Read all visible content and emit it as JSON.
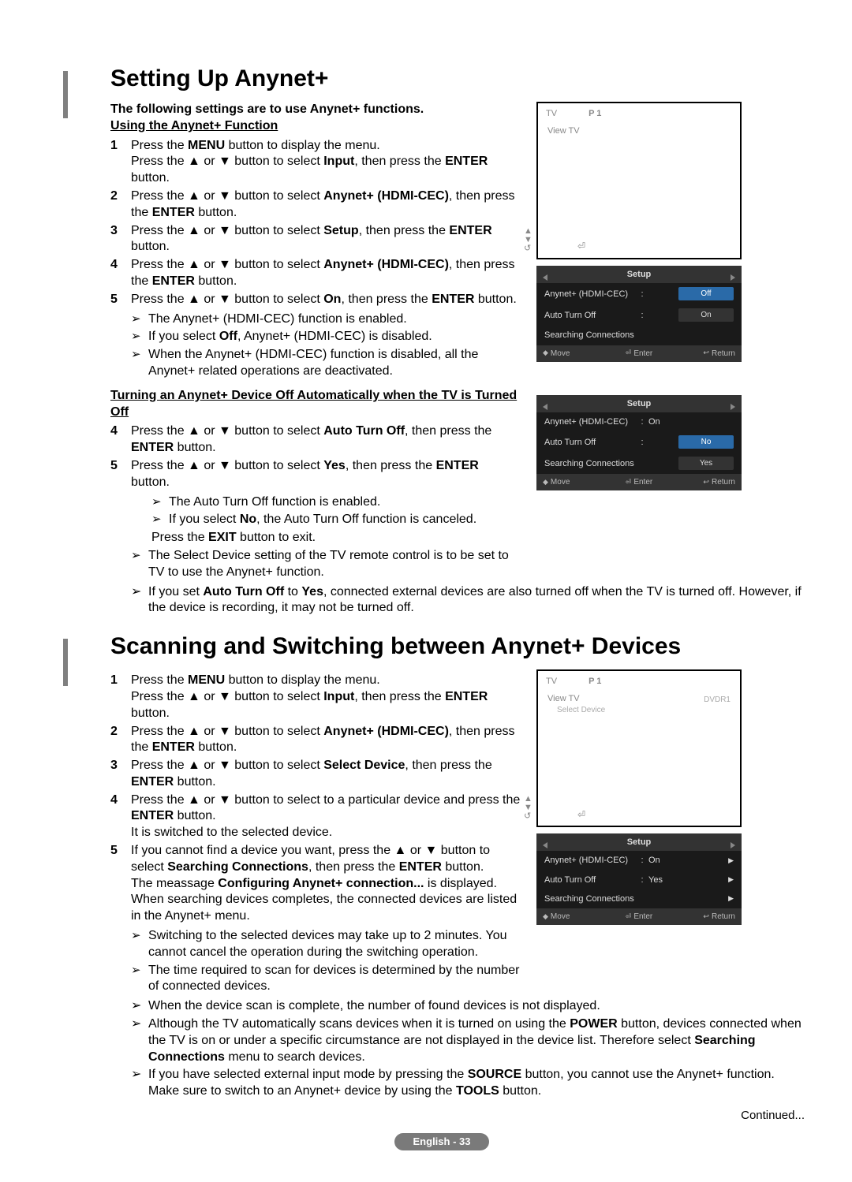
{
  "page": {
    "continued": "Continued...",
    "badge": "English - 33"
  },
  "s1": {
    "title": "Setting Up Anynet+",
    "intro": "The following settings are to use Anynet+ functions.",
    "sub1": "Using the Anynet+ Function",
    "steps1": [
      {
        "n": "1",
        "t": "Press the <b>MENU</b> button to display the menu.<br>Press the ▲ or ▼ button to select <b>Input</b>, then press the <b>ENTER</b> button."
      },
      {
        "n": "2",
        "t": "Press the ▲ or ▼ button to select <b>Anynet+ (HDMI-CEC)</b>, then press the <b>ENTER</b> button."
      },
      {
        "n": "3",
        "t": "Press the ▲ or ▼ button to select <b>Setup</b>, then press the <b>ENTER</b> button."
      },
      {
        "n": "4",
        "t": "Press the ▲ or ▼ button to select <b>Anynet+ (HDMI-CEC)</b>, then press the <b>ENTER</b> button."
      },
      {
        "n": "5",
        "t": "Press the ▲ or ▼ button to select <b>On</b>, then press the <b>ENTER</b> button."
      }
    ],
    "notes1": [
      "The Anynet+ (HDMI-CEC) function is enabled.",
      "If you select <b>Off</b>, Anynet+ (HDMI-CEC) is disabled.",
      "When the Anynet+ (HDMI-CEC) function is disabled, all the Anynet+ related operations are deactivated."
    ],
    "sub2": "Turning an Anynet+ Device Off Automatically when the TV is Turned Off",
    "steps2": [
      {
        "n": "4",
        "t": "Press the ▲ or ▼ button to select <b>Auto Turn Off</b>, then press the <b>ENTER</b> button."
      },
      {
        "n": "5",
        "t": "Press the ▲ or ▼ button to select <b>Yes</b>, then press the <b>ENTER</b> button."
      }
    ],
    "notes2a": [
      "The Auto Turn Off function is enabled.",
      "If you select <b>No</b>, the Auto Turn Off function is canceled."
    ],
    "exit": "Press the <b>EXIT</b> button to exit.",
    "notes2b": [
      "The Select Device setting of the TV remote control is to be set to TV to use the Anynet+ function."
    ],
    "notes2c": [
      "If you set <b>Auto Turn Off</b> to <b>Yes</b>, connected external devices are also turned off when the TV is turned off. However, if the device is recording, it may not be turned off."
    ]
  },
  "s2": {
    "title": "Scanning and Switching between Anynet+ Devices",
    "steps": [
      {
        "n": "1",
        "t": "Press the <b>MENU</b> button to display the menu.<br>Press the ▲ or ▼ button to select <b>Input</b>, then press the <b>ENTER</b> button."
      },
      {
        "n": "2",
        "t": "Press the ▲ or ▼ button to select <b>Anynet+ (HDMI-CEC)</b>, then press the <b>ENTER</b> button."
      },
      {
        "n": "3",
        "t": "Press the ▲ or ▼ button to select <b>Select Device</b>, then press the <b>ENTER</b> button."
      },
      {
        "n": "4",
        "t": "Press the ▲ or ▼ button to select to a particular device and press the <b>ENTER</b> button.<br>It is switched to the selected device."
      },
      {
        "n": "5",
        "t": "If you cannot find a device you want, press the ▲ or ▼ button to select <b>Searching Connections</b>, then press the <b>ENTER</b> button.<br>The meassage <b>Configuring Anynet+ connection...</b> is displayed. When searching devices completes, the connected devices are listed in the Anynet+ menu."
      }
    ],
    "notesA": [
      "Switching to the selected devices may take up to 2 minutes. You cannot cancel the operation during the switching operation.",
      "The time required to scan for devices is determined by the number of connected devices."
    ],
    "notesB": [
      "When the device scan is complete, the number of found devices is not displayed.",
      "Although the TV automatically scans devices when it is turned on using the <b>POWER</b> button, devices connected when the TV is on or under a specific circumstance are not displayed in the device list. Therefore select <b>Searching Connections</b> menu to search devices.",
      "If you have selected external input mode by pressing the <b>SOURCE</b> button, you cannot use the Anynet+ function. Make sure to switch to an Anynet+ device by using the <b>TOOLS</b> button."
    ]
  },
  "osd": {
    "tv": "TV",
    "p1": "P 1",
    "viewtv": "View TV",
    "selectdev": "Select Device",
    "dvdr": "DVDR1",
    "setup": "Setup",
    "anynet": "Anynet+ (HDMI-CEC)",
    "auto": "Auto Turn Off",
    "search": "Searching Connections",
    "off": "Off",
    "on": "On",
    "no": "No",
    "yes": "Yes",
    "move": "Move",
    "enter": "Enter",
    "return": "Return"
  }
}
